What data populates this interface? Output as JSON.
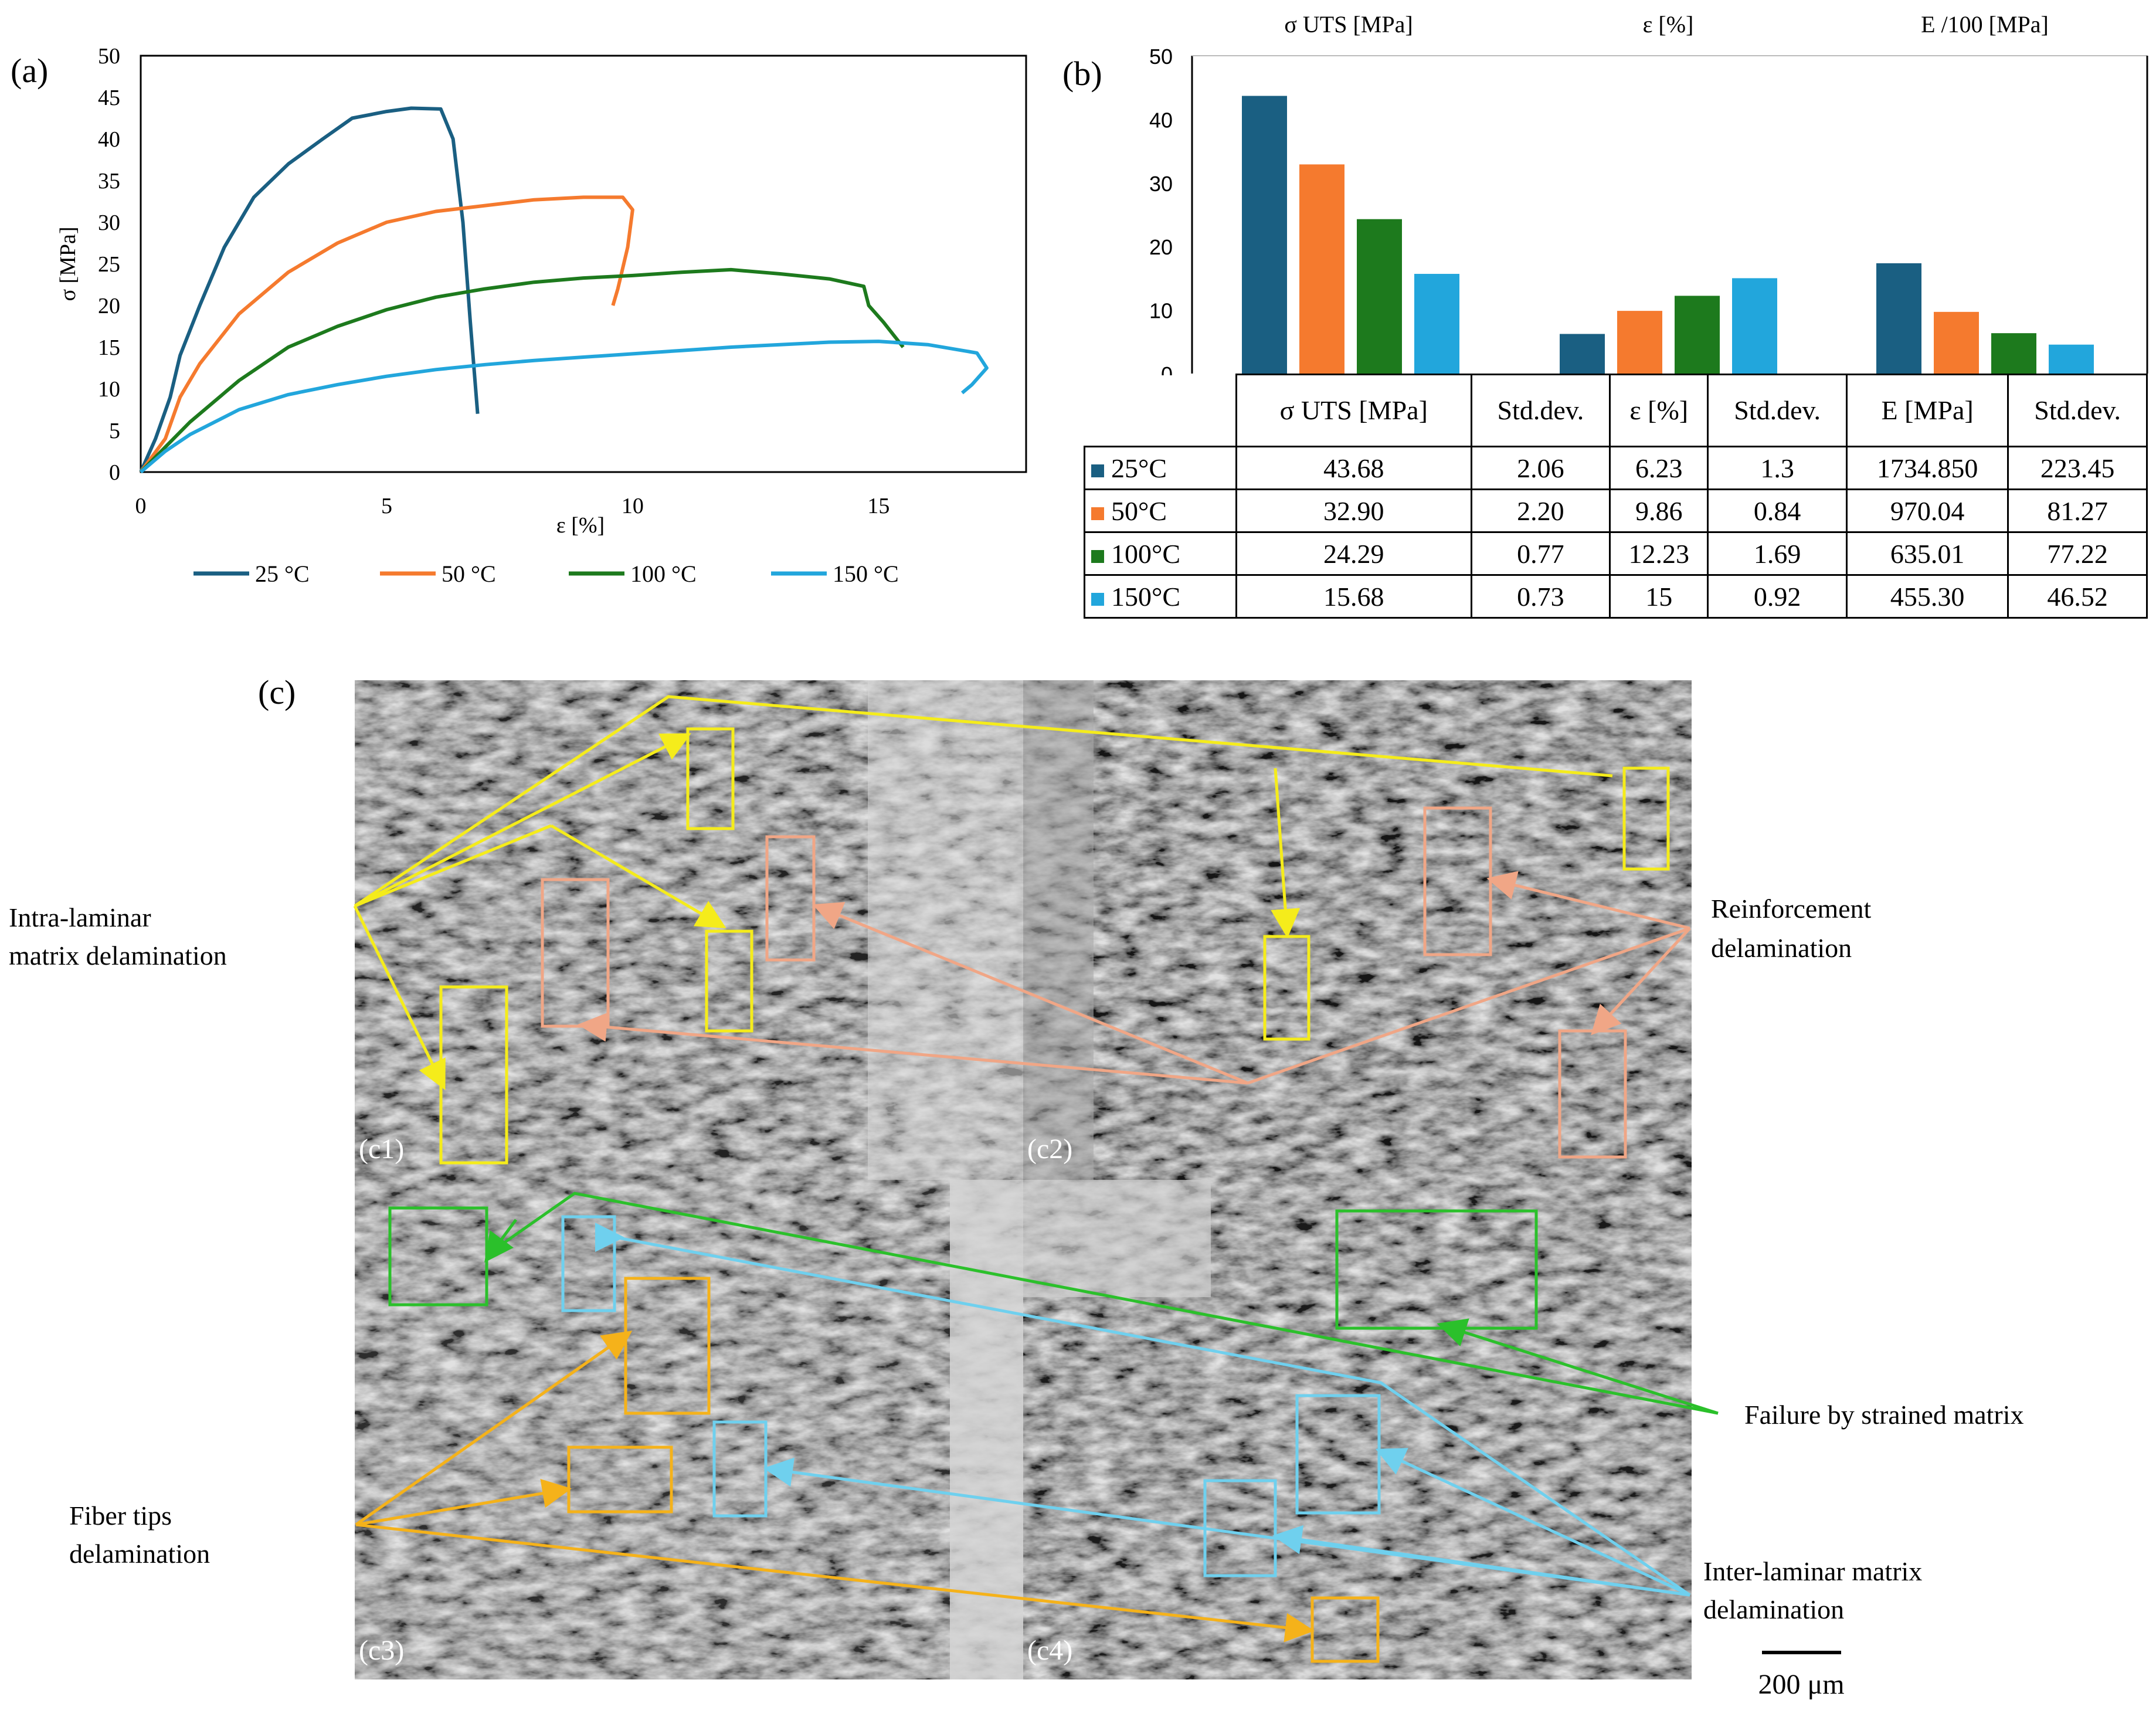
{
  "panel_labels": {
    "a": "(a)",
    "b": "(b)",
    "c": "(c)"
  },
  "colors": {
    "t25": "#1a5f82",
    "t50": "#f57a2e",
    "t100": "#1d7a1d",
    "t150": "#22a6dc",
    "yellow_box": "#f5ec1b",
    "salmon_box": "#f0a686",
    "green_box": "#2bc02b",
    "lightblue_box": "#6fd0ee",
    "orange_box": "#f5b21a"
  },
  "chart_data": [
    {
      "id": "a",
      "type": "line",
      "xlabel": "ε [%]",
      "ylabel": "σ [MPa]",
      "xlim": [
        0,
        18
      ],
      "ylim": [
        0,
        50
      ],
      "xticks": [
        0,
        5,
        10,
        15
      ],
      "yticks": [
        0,
        5,
        10,
        15,
        20,
        25,
        30,
        35,
        40,
        45,
        50
      ],
      "legend_position": "bottom",
      "series": [
        {
          "name": "25 °C",
          "color": "#1a5f82",
          "points": [
            [
              0,
              0
            ],
            [
              0.3,
              4
            ],
            [
              0.6,
              9
            ],
            [
              0.8,
              14
            ],
            [
              1.2,
              20
            ],
            [
              1.7,
              27
            ],
            [
              2.3,
              33
            ],
            [
              3,
              37
            ],
            [
              3.7,
              40
            ],
            [
              4.3,
              42.5
            ],
            [
              5,
              43.3
            ],
            [
              5.5,
              43.7
            ],
            [
              6.1,
              43.6
            ],
            [
              6.35,
              40
            ],
            [
              6.55,
              30
            ],
            [
              6.7,
              18
            ],
            [
              6.85,
              7
            ]
          ]
        },
        {
          "name": "50 °C",
          "color": "#f57a2e",
          "points": [
            [
              0,
              0
            ],
            [
              0.5,
              4
            ],
            [
              0.8,
              9
            ],
            [
              1.2,
              13
            ],
            [
              2,
              19
            ],
            [
              3,
              24
            ],
            [
              4,
              27.5
            ],
            [
              5,
              30
            ],
            [
              6,
              31.3
            ],
            [
              7,
              32
            ],
            [
              8,
              32.7
            ],
            [
              9,
              33
            ],
            [
              9.8,
              33
            ],
            [
              10,
              31.5
            ],
            [
              9.9,
              27
            ],
            [
              9.7,
              22
            ],
            [
              9.6,
              20
            ]
          ]
        },
        {
          "name": "100 °C",
          "color": "#1d7a1d",
          "points": [
            [
              0,
              0
            ],
            [
              0.5,
              3
            ],
            [
              1,
              6
            ],
            [
              2,
              11
            ],
            [
              3,
              15
            ],
            [
              4,
              17.5
            ],
            [
              5,
              19.5
            ],
            [
              6,
              21
            ],
            [
              7,
              22
            ],
            [
              8,
              22.8
            ],
            [
              9,
              23.3
            ],
            [
              10,
              23.6
            ],
            [
              11,
              24
            ],
            [
              12,
              24.3
            ],
            [
              13,
              23.8
            ],
            [
              14,
              23.2
            ],
            [
              14.7,
              22.3
            ],
            [
              14.8,
              20
            ],
            [
              15.1,
              18
            ],
            [
              15.5,
              15
            ]
          ]
        },
        {
          "name": "150 °C",
          "color": "#22a6dc",
          "points": [
            [
              0,
              0
            ],
            [
              0.5,
              2.5
            ],
            [
              1,
              4.5
            ],
            [
              2,
              7.5
            ],
            [
              3,
              9.3
            ],
            [
              4,
              10.5
            ],
            [
              5,
              11.5
            ],
            [
              6,
              12.3
            ],
            [
              7,
              12.9
            ],
            [
              8,
              13.4
            ],
            [
              9,
              13.8
            ],
            [
              10,
              14.2
            ],
            [
              11,
              14.6
            ],
            [
              12,
              15
            ],
            [
              13,
              15.3
            ],
            [
              14,
              15.6
            ],
            [
              15,
              15.7
            ],
            [
              16,
              15.3
            ],
            [
              17,
              14.3
            ],
            [
              17.2,
              12.5
            ],
            [
              16.9,
              10.5
            ],
            [
              16.7,
              9.5
            ]
          ]
        }
      ]
    },
    {
      "id": "b",
      "type": "bar",
      "group_titles": [
        "σ UTS [MPa]",
        "ε [%]",
        "E /100 [MPa]"
      ],
      "ylim": [
        0,
        50
      ],
      "yticks": [
        0,
        10,
        20,
        30,
        40,
        50
      ],
      "series": [
        {
          "name": "25°C",
          "color": "#1a5f82",
          "values": [
            43.68,
            6.23,
            17.35
          ]
        },
        {
          "name": "50°C",
          "color": "#f57a2e",
          "values": [
            32.9,
            9.86,
            9.7
          ]
        },
        {
          "name": "100°C",
          "color": "#1d7a1d",
          "values": [
            24.29,
            12.23,
            6.35
          ]
        },
        {
          "name": "150°C",
          "color": "#22a6dc",
          "values": [
            15.68,
            15,
            4.55
          ]
        }
      ]
    },
    {
      "id": "b-table",
      "type": "table",
      "headers": [
        "σ UTS [MPa]",
        "Std.dev.",
        "ε [%]",
        "Std.dev.",
        "E [MPa]",
        "Std.dev."
      ],
      "rows": [
        {
          "label": "25°C",
          "color": "#1a5f82",
          "cells": [
            "43.68",
            "2.06",
            "6.23",
            "1.3",
            "1734.850",
            "223.45"
          ]
        },
        {
          "label": "50°C",
          "color": "#f57a2e",
          "cells": [
            "32.90",
            "2.20",
            "9.86",
            "0.84",
            "970.04",
            "81.27"
          ]
        },
        {
          "label": "100°C",
          "color": "#1d7a1d",
          "cells": [
            "24.29",
            "0.77",
            "12.23",
            "1.69",
            "635.01",
            "77.22"
          ]
        },
        {
          "label": "150°C",
          "color": "#22a6dc",
          "cells": [
            "15.68",
            "0.73",
            "15",
            "0.92",
            "455.30",
            "46.52"
          ]
        }
      ]
    }
  ],
  "sem_panels": {
    "sub_labels": [
      "(c1)",
      "(c2)",
      "(c3)",
      "(c4)"
    ],
    "annotations": {
      "intra": "Intra-laminar matrix delamination",
      "reinforcement": "Reinforcement delamination",
      "fiber_tips": "Fiber tips delamination",
      "strained": "Failure by strained matrix",
      "inter": "Inter-laminar matrix delamination"
    },
    "scale_bar": "200 μm"
  }
}
